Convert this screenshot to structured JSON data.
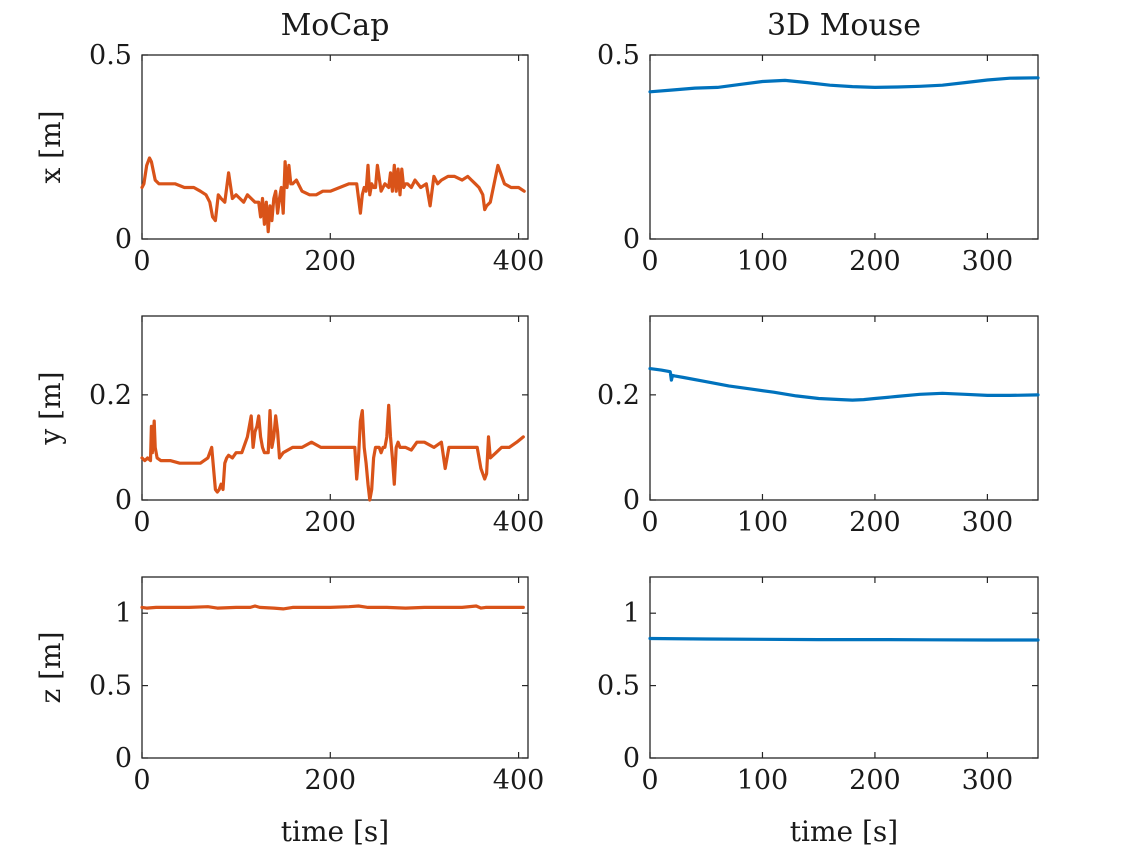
{
  "chart_data": [
    {
      "id": "mocap-x",
      "type": "line",
      "title": "MoCap",
      "xlabel": "",
      "ylabel": "x [m]",
      "xlim": [
        0,
        410
      ],
      "ylim": [
        0,
        0.5
      ],
      "xticks": [
        0,
        200,
        400
      ],
      "yticks": [
        0,
        0.5
      ],
      "xtick_labels": [
        "0",
        "200",
        "400"
      ],
      "ytick_labels": [
        "0",
        "0.5"
      ],
      "series": [
        {
          "name": "MoCap",
          "color": "#D95319",
          "x": [
            0,
            2,
            5,
            8,
            10,
            14,
            18,
            25,
            35,
            45,
            55,
            62,
            68,
            72,
            75,
            78,
            81,
            84,
            88,
            92,
            96,
            100,
            104,
            108,
            112,
            116,
            120,
            124,
            126,
            128,
            130,
            132,
            134,
            136,
            138,
            140,
            142,
            144,
            146,
            148,
            150,
            152,
            154,
            156,
            158,
            160,
            164,
            170,
            178,
            185,
            192,
            200,
            210,
            220,
            228,
            232,
            234,
            236,
            238,
            240,
            242,
            244,
            246,
            248,
            250,
            254,
            258,
            262,
            264,
            266,
            268,
            270,
            272,
            274,
            276,
            278,
            280,
            282,
            286,
            290,
            296,
            302,
            306,
            310,
            314,
            318,
            325,
            332,
            340,
            346,
            350,
            354,
            358,
            362,
            364,
            366,
            370,
            378,
            385,
            392,
            400,
            406
          ],
          "y": [
            0.14,
            0.15,
            0.2,
            0.22,
            0.21,
            0.16,
            0.15,
            0.15,
            0.15,
            0.14,
            0.14,
            0.13,
            0.12,
            0.1,
            0.06,
            0.05,
            0.12,
            0.11,
            0.1,
            0.18,
            0.11,
            0.12,
            0.11,
            0.1,
            0.12,
            0.11,
            0.1,
            0.1,
            0.06,
            0.11,
            0.04,
            0.1,
            0.02,
            0.09,
            0.05,
            0.11,
            0.13,
            0.07,
            0.11,
            0.14,
            0.07,
            0.21,
            0.14,
            0.2,
            0.15,
            0.15,
            0.16,
            0.13,
            0.12,
            0.12,
            0.13,
            0.13,
            0.14,
            0.15,
            0.15,
            0.07,
            0.12,
            0.14,
            0.13,
            0.2,
            0.12,
            0.15,
            0.14,
            0.14,
            0.2,
            0.13,
            0.15,
            0.14,
            0.18,
            0.13,
            0.2,
            0.13,
            0.19,
            0.12,
            0.19,
            0.14,
            0.15,
            0.15,
            0.14,
            0.16,
            0.14,
            0.15,
            0.09,
            0.17,
            0.15,
            0.16,
            0.17,
            0.17,
            0.16,
            0.17,
            0.16,
            0.15,
            0.14,
            0.12,
            0.08,
            0.09,
            0.1,
            0.2,
            0.15,
            0.14,
            0.14,
            0.13
          ]
        }
      ]
    },
    {
      "id": "mouse-x",
      "type": "line",
      "title": "3D Mouse",
      "xlabel": "",
      "ylabel": "",
      "xlim": [
        0,
        345
      ],
      "ylim": [
        0,
        0.5
      ],
      "xticks": [
        0,
        100,
        200,
        300
      ],
      "yticks": [
        0,
        0.5
      ],
      "xtick_labels": [
        "0",
        "100",
        "200",
        "300"
      ],
      "ytick_labels": [
        "0",
        "0.5"
      ],
      "series": [
        {
          "name": "3D Mouse",
          "color": "#0072BD",
          "x": [
            0,
            20,
            40,
            60,
            80,
            100,
            120,
            140,
            160,
            180,
            200,
            220,
            240,
            260,
            280,
            300,
            320,
            345
          ],
          "y": [
            0.4,
            0.405,
            0.41,
            0.412,
            0.42,
            0.428,
            0.431,
            0.425,
            0.418,
            0.414,
            0.412,
            0.413,
            0.415,
            0.418,
            0.425,
            0.432,
            0.437,
            0.438
          ]
        }
      ]
    },
    {
      "id": "mocap-y",
      "type": "line",
      "title": "",
      "xlabel": "",
      "ylabel": "y [m]",
      "xlim": [
        0,
        410
      ],
      "ylim": [
        0,
        0.35
      ],
      "xticks": [
        0,
        200,
        400
      ],
      "yticks": [
        0,
        0.2
      ],
      "xtick_labels": [
        "0",
        "200",
        "400"
      ],
      "ytick_labels": [
        "0",
        "0.2"
      ],
      "series": [
        {
          "name": "MoCap",
          "color": "#D95319",
          "x": [
            0,
            3,
            6,
            9,
            10,
            11,
            12,
            13,
            14,
            16,
            20,
            30,
            40,
            50,
            58,
            62,
            66,
            70,
            74,
            78,
            80,
            82,
            84,
            86,
            88,
            90,
            92,
            96,
            100,
            106,
            112,
            116,
            118,
            120,
            122,
            124,
            126,
            128,
            130,
            134,
            136,
            138,
            140,
            142,
            144,
            146,
            150,
            160,
            170,
            180,
            190,
            200,
            210,
            220,
            226,
            228,
            230,
            232,
            234,
            236,
            238,
            240,
            242,
            244,
            246,
            248,
            250,
            252,
            254,
            256,
            258,
            260,
            262,
            264,
            266,
            268,
            270,
            272,
            274,
            276,
            280,
            286,
            292,
            300,
            310,
            318,
            322,
            326,
            330,
            340,
            350,
            356,
            360,
            364,
            366,
            368,
            370,
            376,
            382,
            390,
            398,
            405
          ],
          "y": [
            0.08,
            0.075,
            0.08,
            0.075,
            0.14,
            0.09,
            0.12,
            0.15,
            0.1,
            0.08,
            0.075,
            0.075,
            0.07,
            0.07,
            0.07,
            0.07,
            0.075,
            0.08,
            0.1,
            0.02,
            0.015,
            0.02,
            0.03,
            0.02,
            0.07,
            0.08,
            0.085,
            0.08,
            0.09,
            0.09,
            0.12,
            0.16,
            0.1,
            0.13,
            0.14,
            0.16,
            0.12,
            0.1,
            0.09,
            0.09,
            0.17,
            0.1,
            0.12,
            0.16,
            0.13,
            0.08,
            0.09,
            0.1,
            0.1,
            0.11,
            0.1,
            0.1,
            0.1,
            0.1,
            0.1,
            0.04,
            0.08,
            0.15,
            0.17,
            0.1,
            0.07,
            0.03,
            0.0,
            0.02,
            0.08,
            0.1,
            0.1,
            0.1,
            0.09,
            0.1,
            0.1,
            0.12,
            0.18,
            0.12,
            0.08,
            0.03,
            0.1,
            0.11,
            0.1,
            0.1,
            0.1,
            0.095,
            0.11,
            0.11,
            0.1,
            0.11,
            0.06,
            0.1,
            0.1,
            0.1,
            0.1,
            0.1,
            0.06,
            0.04,
            0.05,
            0.12,
            0.08,
            0.09,
            0.1,
            0.1,
            0.11,
            0.12
          ]
        }
      ]
    },
    {
      "id": "mouse-y",
      "type": "line",
      "title": "",
      "xlabel": "",
      "ylabel": "",
      "xlim": [
        0,
        345
      ],
      "ylim": [
        0,
        0.35
      ],
      "xticks": [
        0,
        100,
        200,
        300
      ],
      "yticks": [
        0,
        0.2
      ],
      "xtick_labels": [
        "0",
        "100",
        "200",
        "300"
      ],
      "ytick_labels": [
        "0",
        "0.2"
      ],
      "series": [
        {
          "name": "3D Mouse",
          "color": "#0072BD",
          "x": [
            0,
            10,
            18,
            19,
            20,
            22,
            30,
            50,
            70,
            90,
            110,
            130,
            150,
            170,
            180,
            190,
            200,
            220,
            240,
            260,
            280,
            300,
            320,
            345
          ],
          "y": [
            0.25,
            0.247,
            0.244,
            0.228,
            0.237,
            0.236,
            0.233,
            0.225,
            0.217,
            0.211,
            0.205,
            0.198,
            0.193,
            0.191,
            0.19,
            0.191,
            0.193,
            0.197,
            0.201,
            0.203,
            0.201,
            0.199,
            0.199,
            0.2
          ]
        }
      ]
    },
    {
      "id": "mocap-z",
      "type": "line",
      "title": "",
      "xlabel": "time [s]",
      "ylabel": "z [m]",
      "xlim": [
        0,
        410
      ],
      "ylim": [
        0,
        1.25
      ],
      "xticks": [
        0,
        200,
        400
      ],
      "yticks": [
        0,
        0.5,
        1
      ],
      "xtick_labels": [
        "0",
        "200",
        "400"
      ],
      "ytick_labels": [
        "0",
        "0.5",
        "1"
      ],
      "series": [
        {
          "name": "MoCap",
          "color": "#D95319",
          "x": [
            0,
            5,
            15,
            30,
            50,
            70,
            80,
            100,
            115,
            120,
            125,
            140,
            150,
            160,
            180,
            200,
            220,
            230,
            240,
            260,
            280,
            300,
            320,
            340,
            355,
            360,
            365,
            380,
            400,
            405
          ],
          "y": [
            1.04,
            1.035,
            1.04,
            1.04,
            1.04,
            1.045,
            1.035,
            1.04,
            1.04,
            1.05,
            1.04,
            1.035,
            1.03,
            1.04,
            1.04,
            1.04,
            1.045,
            1.05,
            1.04,
            1.04,
            1.035,
            1.04,
            1.04,
            1.04,
            1.05,
            1.035,
            1.04,
            1.04,
            1.04,
            1.04
          ]
        }
      ]
    },
    {
      "id": "mouse-z",
      "type": "line",
      "title": "",
      "xlabel": "time [s]",
      "ylabel": "",
      "xlim": [
        0,
        345
      ],
      "ylim": [
        0,
        1.25
      ],
      "xticks": [
        0,
        100,
        200,
        300
      ],
      "yticks": [
        0,
        0.5,
        1
      ],
      "xtick_labels": [
        "0",
        "100",
        "200",
        "300"
      ],
      "ytick_labels": [
        "0",
        "0.5",
        "1"
      ],
      "series": [
        {
          "name": "3D Mouse",
          "color": "#0072BD",
          "x": [
            0,
            50,
            100,
            150,
            200,
            250,
            300,
            345
          ],
          "y": [
            0.825,
            0.822,
            0.82,
            0.818,
            0.818,
            0.816,
            0.815,
            0.815
          ]
        }
      ]
    }
  ]
}
